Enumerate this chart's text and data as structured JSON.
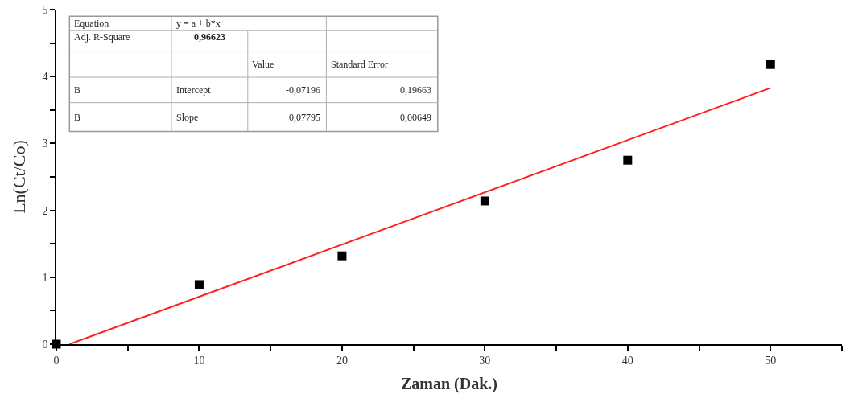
{
  "chart_data": {
    "type": "scatter",
    "xlabel": "Zaman (Dak.)",
    "ylabel": "Ln(Ct/Co)",
    "series": [
      {
        "color": "#000000",
        "marker": "square",
        "x": [
          0,
          10,
          20,
          30,
          40,
          50
        ],
        "values": [
          0,
          0.89,
          1.32,
          2.14,
          2.75,
          4.18
        ]
      },
      {
        "type": "line",
        "color": "#ff2020",
        "marker": "none",
        "line_style": "solid",
        "x": [
          0.92,
          50
        ],
        "values": [
          0,
          3.83
        ]
      }
    ],
    "xlim": [
      0,
      55
    ],
    "ylim": [
      0,
      5
    ],
    "xticks": [
      0,
      {
        "value": 5,
        "label": null
      },
      10,
      {
        "value": 15,
        "label": null
      },
      20,
      {
        "value": 25,
        "label": null
      },
      30,
      {
        "value": 35,
        "label": null
      },
      40,
      {
        "value": 45,
        "label": null
      },
      50,
      {
        "value": 55,
        "label": null
      }
    ],
    "yticks": [
      0,
      {
        "value": 0.5,
        "label": null
      },
      1,
      {
        "value": 1.5,
        "label": null
      },
      2,
      {
        "value": 2.5,
        "label": null
      },
      3,
      {
        "value": 3.5,
        "label": null
      },
      4,
      {
        "value": 4.5,
        "label": null
      },
      5
    ],
    "legend": false,
    "annotations": [
      "Equation",
      "y = a + b*x",
      "Adj. R-Square",
      "0,96623",
      "Value",
      "Standard Error",
      "B",
      "Intercept",
      "-0,07196",
      "0,19663",
      "B",
      "Slope",
      "0,07795",
      "0,00649"
    ]
  }
}
